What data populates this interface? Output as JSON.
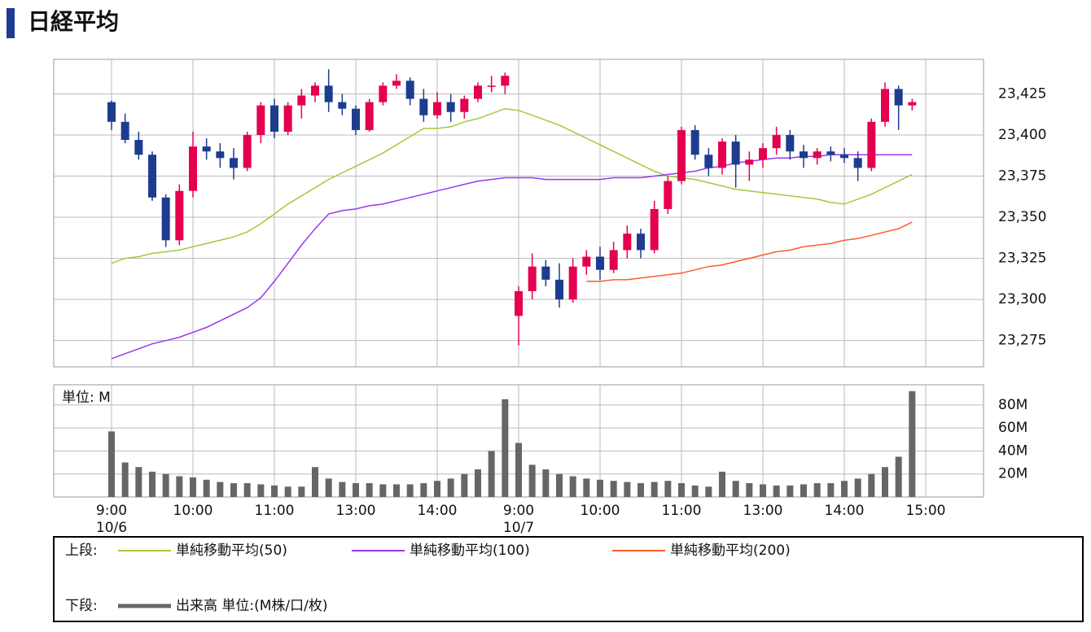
{
  "page_title": "日経平均",
  "chart_data": [
    {
      "type": "candlestick",
      "x": [
        0,
        1,
        2,
        3,
        4,
        5,
        6,
        7,
        8,
        9,
        10,
        11,
        12,
        13,
        14,
        15,
        16,
        17,
        18,
        19,
        20,
        21,
        22,
        23,
        24,
        25,
        26,
        27,
        28,
        29,
        30,
        31,
        32,
        33,
        34,
        35,
        36,
        37,
        38,
        39,
        40,
        41,
        42,
        43,
        44,
        45,
        46,
        47,
        48,
        49,
        50,
        51,
        52,
        53,
        54,
        55,
        56,
        57,
        58,
        59
      ],
      "open": [
        23420,
        23408,
        23397,
        23388,
        23362,
        23336,
        23366,
        23393,
        23390,
        23386,
        23380,
        23400,
        23418,
        23402,
        23418,
        23424,
        23430,
        23420,
        23416,
        23403,
        23420,
        23430,
        23433,
        23422,
        23412,
        23420,
        23414,
        23422,
        23430,
        23430,
        23290,
        23305,
        23320,
        23312,
        23300,
        23320,
        23326,
        23318,
        23330,
        23340,
        23330,
        23355,
        23372,
        23403,
        23388,
        23380,
        23396,
        23382,
        23385,
        23392,
        23400,
        23390,
        23386,
        23390,
        23388,
        23386,
        23380,
        23408,
        23428,
        23418
      ],
      "high": [
        23421,
        23413,
        23402,
        23390,
        23364,
        23370,
        23402,
        23398,
        23395,
        23392,
        23402,
        23420,
        23422,
        23420,
        23428,
        23432,
        23440,
        23425,
        23418,
        23422,
        23432,
        23437,
        23435,
        23428,
        23426,
        23425,
        23424,
        23432,
        23436,
        23438,
        23308,
        23328,
        23324,
        23322,
        23325,
        23330,
        23332,
        23335,
        23345,
        23343,
        23360,
        23375,
        23405,
        23406,
        23392,
        23398,
        23400,
        23390,
        23395,
        23405,
        23403,
        23394,
        23392,
        23393,
        23392,
        23390,
        23410,
        23432,
        23430,
        23422
      ],
      "low": [
        23403,
        23395,
        23385,
        23360,
        23332,
        23333,
        23362,
        23385,
        23380,
        23373,
        23378,
        23395,
        23398,
        23400,
        23410,
        23420,
        23414,
        23412,
        23400,
        23402,
        23418,
        23428,
        23418,
        23408,
        23410,
        23408,
        23410,
        23420,
        23426,
        23425,
        23272,
        23300,
        23308,
        23295,
        23298,
        23315,
        23312,
        23316,
        23325,
        23325,
        23328,
        23352,
        23370,
        23385,
        23375,
        23376,
        23368,
        23372,
        23380,
        23388,
        23385,
        23380,
        23382,
        23384,
        23383,
        23372,
        23378,
        23405,
        23403,
        23415
      ],
      "close": [
        23408,
        23397,
        23388,
        23362,
        23336,
        23366,
        23393,
        23390,
        23386,
        23380,
        23400,
        23418,
        23402,
        23418,
        23424,
        23430,
        23420,
        23416,
        23403,
        23420,
        23430,
        23433,
        23422,
        23412,
        23420,
        23414,
        23422,
        23430,
        23430,
        23436,
        23305,
        23320,
        23312,
        23300,
        23320,
        23326,
        23318,
        23330,
        23340,
        23330,
        23355,
        23372,
        23403,
        23388,
        23380,
        23396,
        23382,
        23385,
        23392,
        23400,
        23390,
        23386,
        23390,
        23388,
        23386,
        23380,
        23408,
        23428,
        23418,
        23420
      ],
      "up_color": "#e5004f",
      "down_color": "#1d3c8f",
      "legend_label": "上段:",
      "series": [
        {
          "name": "単純移動平均(50)",
          "color": "#a4c93a",
          "values": [
            23322,
            23325,
            23326,
            23328,
            23329,
            23330,
            23332,
            23334,
            23336,
            23338,
            23341,
            23346,
            23352,
            23358,
            23363,
            23368,
            23373,
            23377,
            23381,
            23385,
            23389,
            23394,
            23399,
            23404,
            23404,
            23405,
            23408,
            23410,
            23413,
            23416,
            23415,
            23412,
            23409,
            23406,
            23402,
            23398,
            23394,
            23390,
            23386,
            23382,
            23378,
            23375,
            23374,
            23373,
            23371,
            23369,
            23367,
            23366,
            23365,
            23364,
            23363,
            23362,
            23361,
            23359,
            23358,
            23361,
            23364,
            23368,
            23372,
            23376
          ]
        },
        {
          "name": "単純移動平均(100)",
          "color": "#9b36f0",
          "values": [
            23264,
            23267,
            23270,
            23273,
            23275,
            23277,
            23280,
            23283,
            23287,
            23291,
            23295,
            23301,
            23311,
            23322,
            23333,
            23343,
            23352,
            23354,
            23355,
            23357,
            23358,
            23360,
            23362,
            23364,
            23366,
            23368,
            23370,
            23372,
            23373,
            23374,
            23374,
            23374,
            23373,
            23373,
            23373,
            23373,
            23373,
            23374,
            23374,
            23374,
            23375,
            23376,
            23377,
            23378,
            23380,
            23381,
            23383,
            23384,
            23385,
            23386,
            23386,
            23387,
            23387,
            23388,
            23388,
            23388,
            23388,
            23388,
            23388,
            23388
          ]
        },
        {
          "name": "単純移動平均(200)",
          "color": "#ff5a2a",
          "values": [
            null,
            null,
            null,
            null,
            null,
            null,
            null,
            null,
            null,
            null,
            null,
            null,
            null,
            null,
            null,
            null,
            null,
            null,
            null,
            null,
            null,
            null,
            null,
            null,
            null,
            null,
            null,
            null,
            null,
            null,
            null,
            null,
            null,
            null,
            null,
            23311,
            23311,
            23312,
            23312,
            23313,
            23314,
            23315,
            23316,
            23318,
            23320,
            23321,
            23323,
            23325,
            23327,
            23329,
            23330,
            23332,
            23333,
            23334,
            23336,
            23337,
            23339,
            23341,
            23343,
            23347
          ]
        }
      ],
      "xlim": [
        -4.26,
        64.26
      ],
      "ylim": [
        23259,
        23446
      ],
      "yticks": [
        {
          "value": 23275,
          "label": "23,275"
        },
        {
          "value": 23300,
          "label": "23,300"
        },
        {
          "value": 23325,
          "label": "23,325"
        },
        {
          "value": 23350,
          "label": "23,350"
        },
        {
          "value": 23375,
          "label": "23,375"
        },
        {
          "value": 23400,
          "label": "23,400"
        },
        {
          "value": 23425,
          "label": "23,425"
        }
      ],
      "grid": true
    },
    {
      "type": "bar",
      "unit_label": "単位: M",
      "legend_label": "下段:",
      "x": [
        0,
        1,
        2,
        3,
        4,
        5,
        6,
        7,
        8,
        9,
        10,
        11,
        12,
        13,
        14,
        15,
        16,
        17,
        18,
        19,
        20,
        21,
        22,
        23,
        24,
        25,
        26,
        27,
        28,
        29,
        30,
        31,
        32,
        33,
        34,
        35,
        36,
        37,
        38,
        39,
        40,
        41,
        42,
        43,
        44,
        45,
        46,
        47,
        48,
        49,
        50,
        51,
        52,
        53,
        54,
        55,
        56,
        57,
        58,
        59
      ],
      "series": [
        {
          "name": "出来高 単位:(M株/口/枚)",
          "color": "#666666",
          "values": [
            57,
            30,
            26,
            22,
            20,
            18,
            17,
            15,
            13,
            12,
            12,
            11,
            10,
            9,
            9,
            26,
            16,
            13,
            12,
            12,
            11,
            11,
            11,
            12,
            14,
            16,
            20,
            24,
            40,
            85,
            47,
            28,
            24,
            20,
            18,
            16,
            15,
            14,
            13,
            12,
            13,
            14,
            12,
            10,
            9,
            22,
            14,
            12,
            11,
            10,
            10,
            11,
            12,
            12,
            14,
            16,
            20,
            26,
            35,
            92
          ]
        }
      ],
      "xlim": [
        -4.26,
        64.26
      ],
      "ylim": [
        0,
        97.6
      ],
      "yticks": [
        {
          "value": 20,
          "label": "20M"
        },
        {
          "value": 40,
          "label": "40M"
        },
        {
          "value": 60,
          "label": "60M"
        },
        {
          "value": 80,
          "label": "80M"
        }
      ],
      "xticks": [
        {
          "value": 0,
          "label": "9:00"
        },
        {
          "value": 6,
          "label": "10:00"
        },
        {
          "value": 12,
          "label": "11:00"
        },
        {
          "value": 18,
          "label": "13:00"
        },
        {
          "value": 24,
          "label": "14:00"
        },
        {
          "value": 30,
          "label": "9:00"
        },
        {
          "value": 36,
          "label": "10:00"
        },
        {
          "value": 42,
          "label": "11:00"
        },
        {
          "value": 48,
          "label": "13:00"
        },
        {
          "value": 54,
          "label": "14:00"
        },
        {
          "value": 60,
          "label": "15:00"
        }
      ],
      "x_date_labels": [
        {
          "value": 0,
          "label": "10/6"
        },
        {
          "value": 30,
          "label": "10/7"
        }
      ],
      "grid": true
    }
  ]
}
